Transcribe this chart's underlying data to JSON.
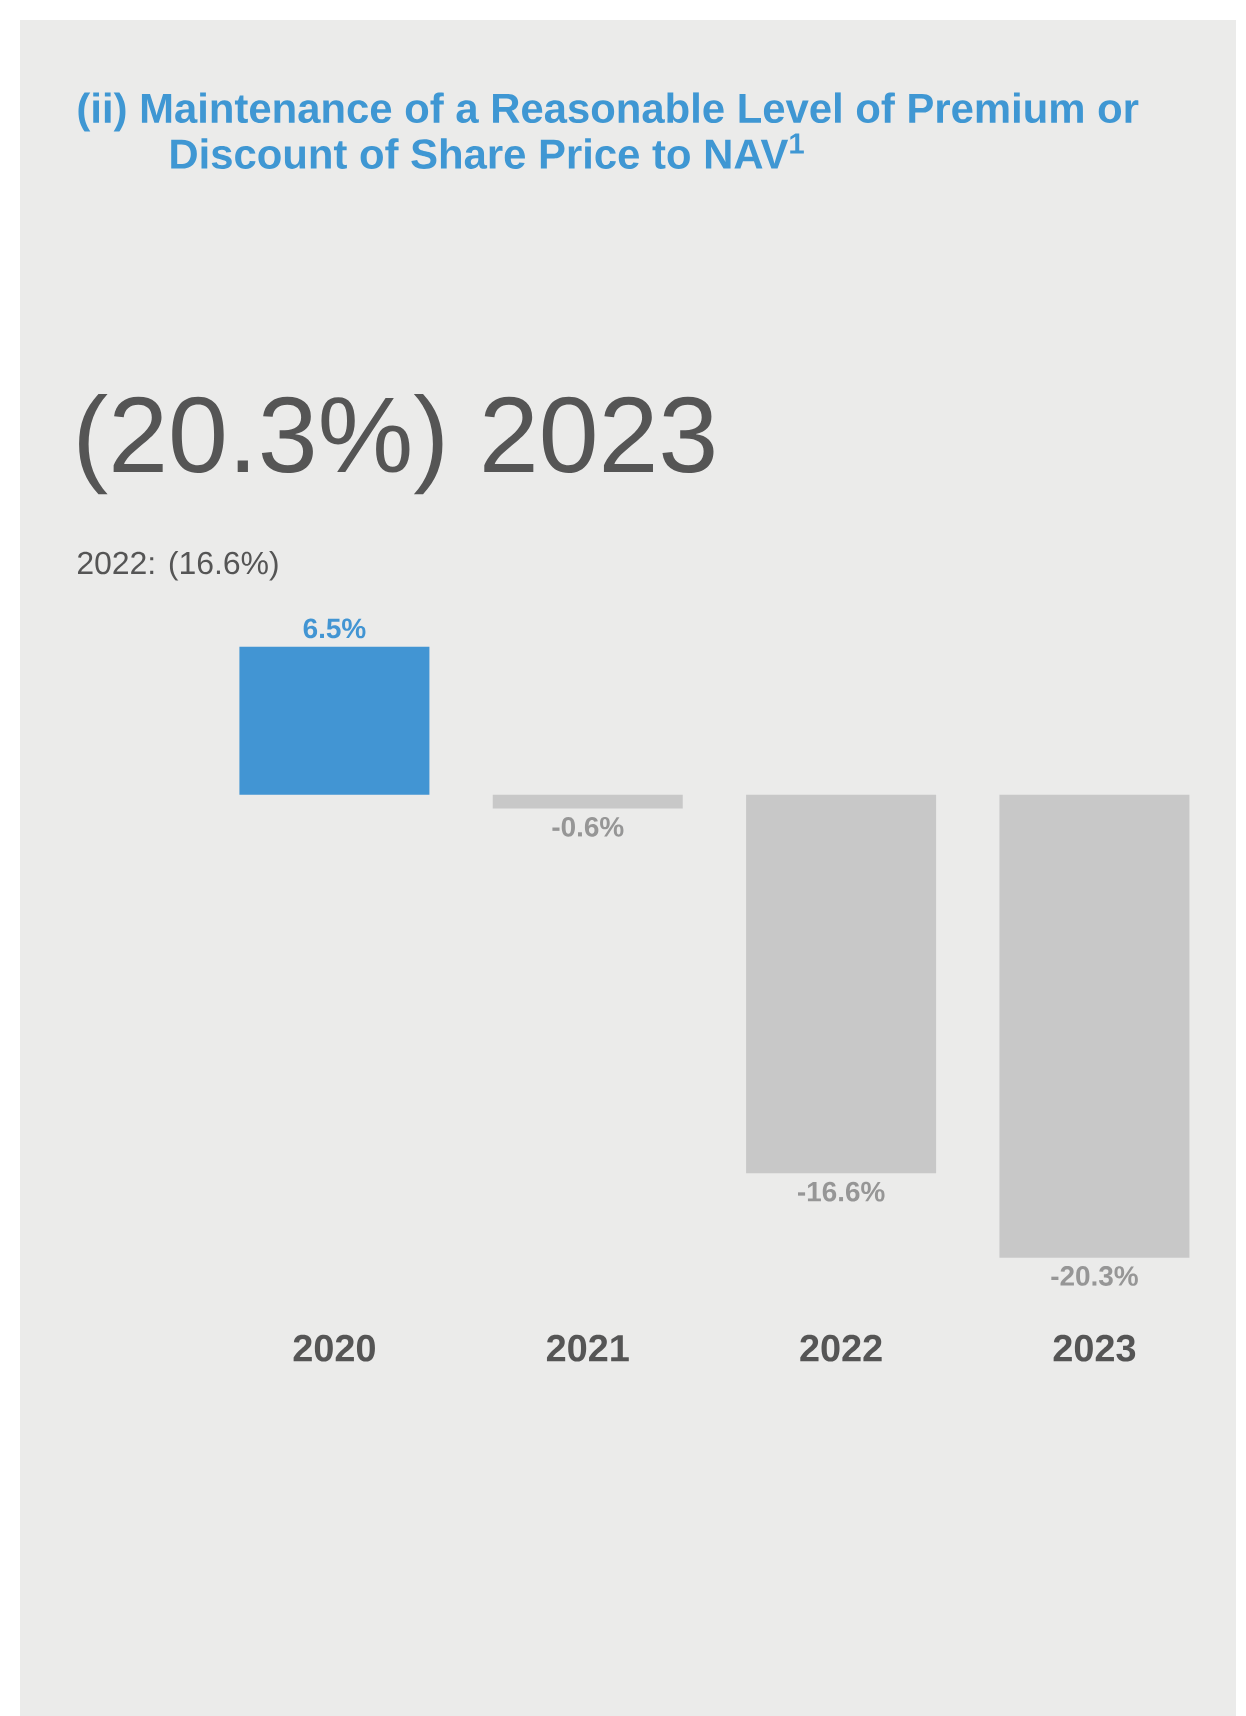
{
  "chart_data": {
    "type": "bar",
    "title": "(ii) Maintenance of a Reasonable Level of Premium or Discount of Share Price to NAV$^{1}$",
    "subtitle": "(20.3%) 2023",
    "annotations": [
      "2022: (16.6%)"
    ],
    "categories": [
      "2020",
      "2021",
      "2022",
      "2023"
    ],
    "values": [
      6.5,
      -0.6,
      -16.6,
      -20.3
    ],
    "value_labels": [
      "6.5%",
      "-0.6%",
      "-16.6%",
      "-20.3%"
    ],
    "colors": [
      "#4295d3",
      "#c8c8c8",
      "#c8c8c8",
      "#c8c8c8"
    ]
  }
}
